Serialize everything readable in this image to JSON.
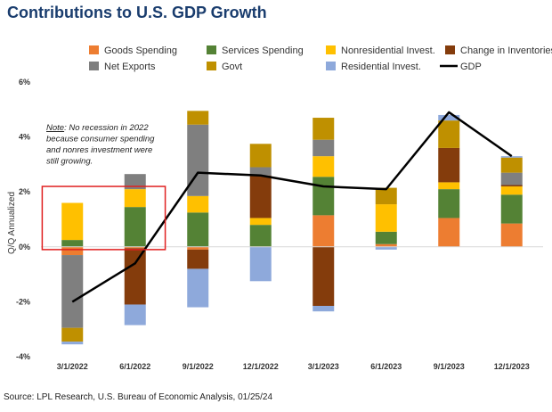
{
  "header": {
    "title": "Contributions to U.S. GDP Growth"
  },
  "footer": {
    "source": "Source: LPL Research, U.S. Bureau of Economic Analysis, 01/25/24"
  },
  "annotation": {
    "lines": [
      "No recession in 2022",
      "because consumer spending",
      "and nonres investment were",
      "still growing."
    ],
    "prefix": "Note"
  },
  "chart_data": {
    "type": "bar",
    "stacked": true,
    "categories": [
      "3/1/2022",
      "6/1/2022",
      "9/1/2022",
      "12/1/2022",
      "3/1/2023",
      "6/1/2023",
      "9/1/2023",
      "12/1/2023"
    ],
    "ylabel": "Q/Q Annualized",
    "ylim": [
      -4,
      6
    ],
    "yticks": [
      "-4%",
      "-2%",
      "0%",
      "2%",
      "4%",
      "6%"
    ],
    "ytick_values": [
      -4,
      -2,
      0,
      2,
      4,
      6
    ],
    "legend_position": "top",
    "series": [
      {
        "name": "Goods Spending",
        "color": "#ED7D31",
        "values": [
          -0.3,
          -0.05,
          -0.1,
          0.0,
          1.15,
          0.1,
          1.05,
          0.85
        ]
      },
      {
        "name": "Services Spending",
        "color": "#548235",
        "values": [
          0.25,
          1.45,
          1.25,
          0.8,
          1.4,
          0.45,
          1.05,
          1.05
        ]
      },
      {
        "name": "Nonresidential Invest.",
        "color": "#FFC000",
        "values": [
          1.35,
          0.65,
          0.6,
          0.25,
          0.75,
          1.0,
          0.25,
          0.3
        ]
      },
      {
        "name": "Change in Inventories",
        "color": "#843C0C",
        "values": [
          0.0,
          -2.05,
          -0.7,
          1.55,
          -2.15,
          0.0,
          1.25,
          0.05
        ]
      },
      {
        "name": "Net Exports",
        "color": "#7F7F7F",
        "values": [
          -2.65,
          0.55,
          2.6,
          0.3,
          0.6,
          0.0,
          0.0,
          0.45
        ]
      },
      {
        "name": "Govt",
        "color": "#BF9000",
        "values": [
          -0.5,
          0.0,
          0.5,
          0.85,
          0.8,
          0.6,
          1.0,
          0.55
        ]
      },
      {
        "name": "Residential Invest.",
        "color": "#8EA9DB",
        "values": [
          -0.1,
          -0.75,
          -1.4,
          -1.25,
          -0.2,
          -0.1,
          0.2,
          0.05
        ]
      }
    ],
    "line": {
      "name": "GDP",
      "color": "#000000",
      "values": [
        -2.0,
        -0.6,
        2.7,
        2.6,
        2.2,
        2.1,
        4.9,
        3.3
      ]
    },
    "grid": false
  },
  "highlight_box": {
    "color": "#E02020",
    "from_category": "3/1/2022",
    "to_category": "6/1/2022",
    "y_range": [
      -0.1,
      2.2
    ]
  }
}
